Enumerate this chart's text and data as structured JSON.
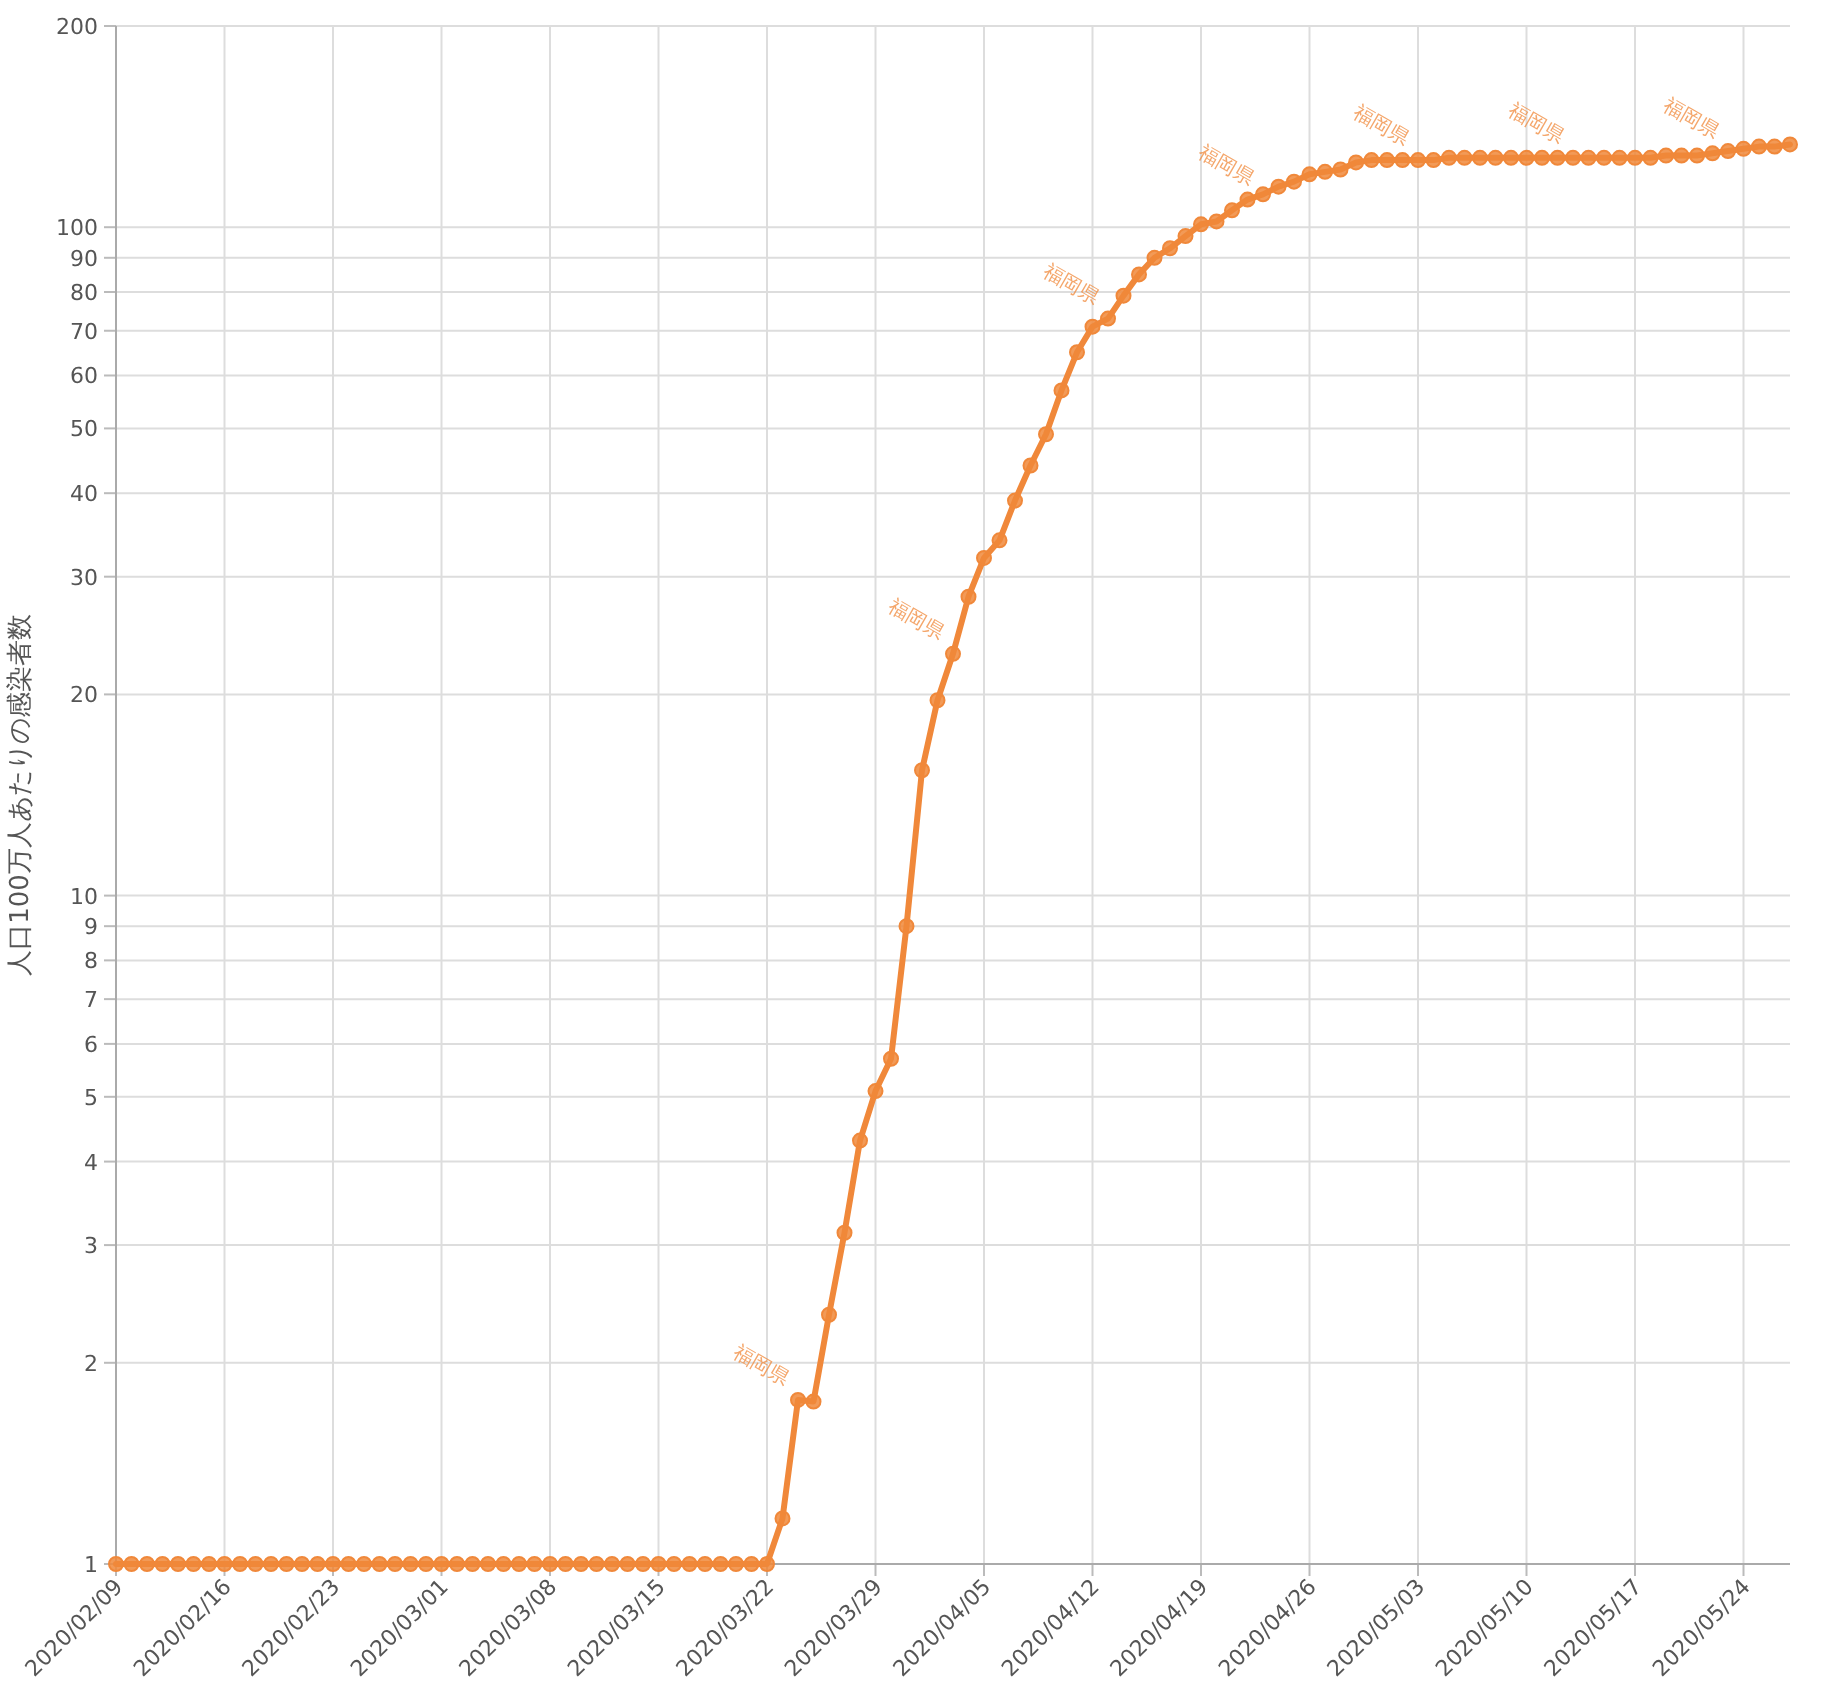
{
  "chart_data": {
    "type": "line",
    "ylabel": "人口100万人あたりの感染者数",
    "log": "y",
    "grid": true,
    "marker": "circle",
    "line_style": "solid",
    "x": [
      "2020-02-09",
      "2020-02-10",
      "2020-02-11",
      "2020-02-12",
      "2020-02-13",
      "2020-02-14",
      "2020-02-15",
      "2020-02-16",
      "2020-02-17",
      "2020-02-18",
      "2020-02-19",
      "2020-02-20",
      "2020-02-21",
      "2020-02-22",
      "2020-02-23",
      "2020-02-24",
      "2020-02-25",
      "2020-02-26",
      "2020-02-27",
      "2020-02-28",
      "2020-02-29",
      "2020-03-01",
      "2020-03-02",
      "2020-03-03",
      "2020-03-04",
      "2020-03-05",
      "2020-03-06",
      "2020-03-07",
      "2020-03-08",
      "2020-03-09",
      "2020-03-10",
      "2020-03-11",
      "2020-03-12",
      "2020-03-13",
      "2020-03-14",
      "2020-03-15",
      "2020-03-16",
      "2020-03-17",
      "2020-03-18",
      "2020-03-19",
      "2020-03-20",
      "2020-03-21",
      "2020-03-22",
      "2020-03-23",
      "2020-03-24",
      "2020-03-25",
      "2020-03-26",
      "2020-03-27",
      "2020-03-28",
      "2020-03-29",
      "2020-03-30",
      "2020-03-31",
      "2020-04-01",
      "2020-04-02",
      "2020-04-03",
      "2020-04-04",
      "2020-04-05",
      "2020-04-06",
      "2020-04-07",
      "2020-04-08",
      "2020-04-09",
      "2020-04-10",
      "2020-04-11",
      "2020-04-12",
      "2020-04-13",
      "2020-04-14",
      "2020-04-15",
      "2020-04-16",
      "2020-04-17",
      "2020-04-18",
      "2020-04-19",
      "2020-04-20",
      "2020-04-21",
      "2020-04-22",
      "2020-04-23",
      "2020-04-24",
      "2020-04-25",
      "2020-04-26",
      "2020-04-27",
      "2020-04-28",
      "2020-04-29",
      "2020-04-30",
      "2020-05-01",
      "2020-05-02",
      "2020-05-03",
      "2020-05-04",
      "2020-05-05",
      "2020-05-06",
      "2020-05-07",
      "2020-05-08",
      "2020-05-09",
      "2020-05-10",
      "2020-05-11",
      "2020-05-12",
      "2020-05-13",
      "2020-05-14",
      "2020-05-15",
      "2020-05-16",
      "2020-05-17",
      "2020-05-18",
      "2020-05-19",
      "2020-05-20",
      "2020-05-21",
      "2020-05-22",
      "2020-05-23",
      "2020-05-24",
      "2020-05-25",
      "2020-05-26",
      "2020-05-27"
    ],
    "series": [
      {
        "color": "#f0883a",
        "values": [
          1,
          1,
          1,
          1,
          1,
          1,
          1,
          1,
          1,
          1,
          1,
          1,
          1,
          1,
          1,
          1,
          1,
          1,
          1,
          1,
          1,
          1,
          1,
          1,
          1,
          1,
          1,
          1,
          1,
          1,
          1,
          1,
          1,
          1,
          1,
          1,
          1,
          1,
          1,
          1,
          1,
          1,
          1,
          1.17,
          1.76,
          1.75,
          2.36,
          3.13,
          4.3,
          5.1,
          5.7,
          9.0,
          15.4,
          19.6,
          23,
          28,
          32,
          34,
          39,
          44,
          49,
          57,
          65,
          71,
          73,
          79,
          85,
          90,
          93,
          97,
          101,
          102,
          106,
          110,
          112,
          115,
          117,
          120,
          121,
          122,
          125,
          126,
          126,
          126,
          126,
          126,
          127,
          127,
          127,
          127,
          127,
          127,
          127,
          127,
          127,
          127,
          127,
          127,
          127,
          127,
          128,
          128,
          128,
          129,
          130,
          131,
          132,
          132,
          133
        ]
      }
    ],
    "annotations": [
      {
        "text": "福岡県",
        "x": "2020-03-24",
        "y": 1.76
      },
      {
        "text": "福岡県",
        "x": "2020-04-03",
        "y": 23
      },
      {
        "text": "福岡県",
        "x": "2020-04-13",
        "y": 73
      },
      {
        "text": "福岡県",
        "x": "2020-04-23",
        "y": 110
      },
      {
        "text": "福岡県",
        "x": "2020-05-03",
        "y": 126
      },
      {
        "text": "福岡県",
        "x": "2020-05-13",
        "y": 127
      },
      {
        "text": "福岡県",
        "x": "2020-05-23",
        "y": 129
      }
    ],
    "xlim": [
      "2020-02-09",
      "2020-05-27"
    ],
    "xticks": [
      {
        "value": "2020-02-09",
        "label": "2020/02/09"
      },
      {
        "value": "2020-02-16",
        "label": "2020/02/16"
      },
      {
        "value": "2020-02-23",
        "label": "2020/02/23"
      },
      {
        "value": "2020-03-01",
        "label": "2020/03/01"
      },
      {
        "value": "2020-03-08",
        "label": "2020/03/08"
      },
      {
        "value": "2020-03-15",
        "label": "2020/03/15"
      },
      {
        "value": "2020-03-22",
        "label": "2020/03/22"
      },
      {
        "value": "2020-03-29",
        "label": "2020/03/29"
      },
      {
        "value": "2020-04-05",
        "label": "2020/04/05"
      },
      {
        "value": "2020-04-12",
        "label": "2020/04/12"
      },
      {
        "value": "2020-04-19",
        "label": "2020/04/19"
      },
      {
        "value": "2020-04-26",
        "label": "2020/04/26"
      },
      {
        "value": "2020-05-03",
        "label": "2020/05/03"
      },
      {
        "value": "2020-05-10",
        "label": "2020/05/10"
      },
      {
        "value": "2020-05-17",
        "label": "2020/05/17"
      },
      {
        "value": "2020-05-24",
        "label": "2020/05/24"
      }
    ],
    "ylim": [
      1,
      200
    ],
    "yticks": [
      1,
      2,
      3,
      4,
      5,
      6,
      7,
      8,
      9,
      10,
      20,
      30,
      40,
      50,
      60,
      70,
      80,
      90,
      100,
      200
    ]
  }
}
